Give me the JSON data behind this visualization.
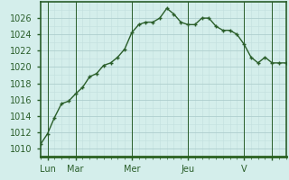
{
  "x_values": [
    0,
    1,
    2,
    3,
    4,
    5,
    6,
    7,
    8,
    9,
    10,
    11,
    12,
    13,
    14,
    15,
    16,
    17,
    18,
    19,
    20,
    21,
    22,
    23,
    24,
    25,
    26,
    27,
    28,
    29,
    30,
    31,
    32,
    33,
    34,
    35
  ],
  "y_values": [
    1010.5,
    1011.8,
    1013.8,
    1015.5,
    1015.8,
    1016.7,
    1017.5,
    1018.8,
    1019.2,
    1020.2,
    1020.5,
    1021.2,
    1022.2,
    1024.2,
    1025.2,
    1025.5,
    1025.5,
    1026.0,
    1027.2,
    1026.5,
    1025.5,
    1025.2,
    1025.2,
    1026.0,
    1026.0,
    1025.0,
    1024.5,
    1024.5,
    1024.0,
    1022.8,
    1021.2,
    1020.5,
    1021.2,
    1020.5,
    1020.5,
    1020.5
  ],
  "x_tick_positions": [
    1,
    5,
    13,
    21,
    29,
    33
  ],
  "x_tick_labels": [
    "Lun",
    "Mar",
    "Mer",
    "Jeu",
    "V",
    ""
  ],
  "day_line_positions": [
    1,
    5,
    13,
    21,
    29,
    33
  ],
  "xlim": [
    0,
    35
  ],
  "ylim": [
    1009,
    1028
  ],
  "yticks": [
    1010,
    1012,
    1014,
    1016,
    1018,
    1020,
    1022,
    1024,
    1026
  ],
  "line_color": "#2a5e2a",
  "marker_color": "#2a5e2a",
  "bg_color": "#d4eeeb",
  "grid_major_color": "#aecece",
  "grid_minor_color": "#c2dede",
  "spine_color": "#2a5e2a",
  "tick_label_color": "#2a5e2a",
  "spine_bottom_color": "#2a6020",
  "label_fontsize": 7,
  "ytick_fontsize": 7
}
